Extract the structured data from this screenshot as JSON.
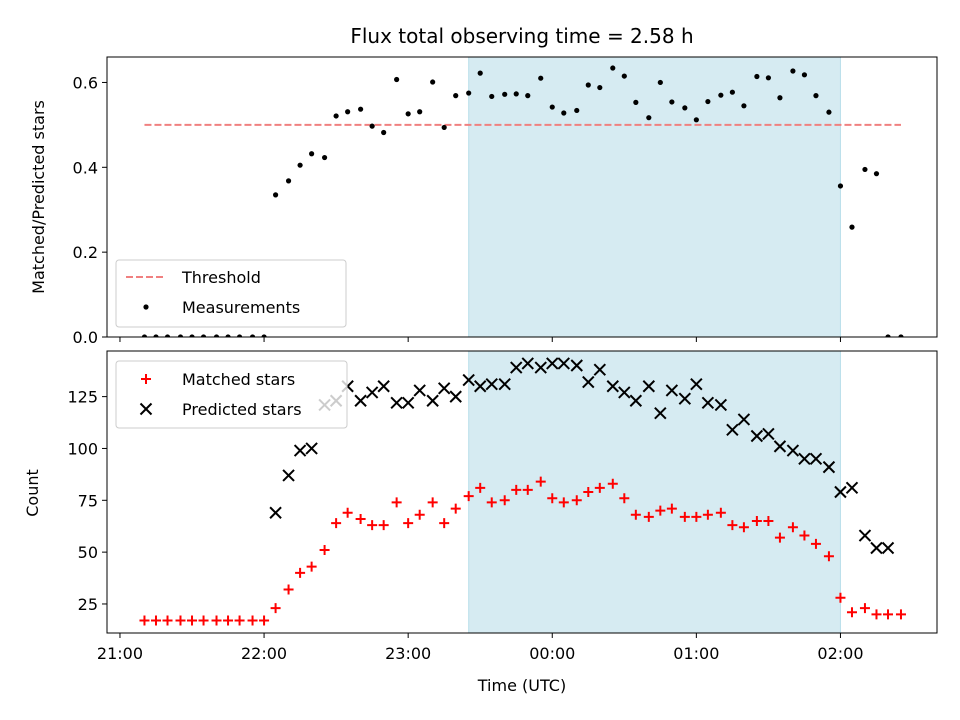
{
  "chart_data": [
    {
      "type": "scatter",
      "title": "Flux total observing time = 2.58 h",
      "xlabel": "",
      "ylabel": "Matched/Predicted stars",
      "ylim": [
        0,
        0.66
      ],
      "yticks": [
        0.0,
        0.2,
        0.4,
        0.6
      ],
      "ytick_labels": [
        "0.0",
        "0.2",
        "0.4",
        "0.6"
      ],
      "xlim_hours": [
        20.91,
        26.67
      ],
      "xticks_hours": [
        21,
        22,
        23,
        24,
        25,
        26
      ],
      "observing_window_hours": [
        23.42,
        26.0
      ],
      "observing_window_color": "#add8e6",
      "threshold": {
        "name": "Threshold",
        "value": 0.5,
        "x_range_hours": [
          21.17,
          26.42
        ],
        "color": "#f08080"
      },
      "legend_position": "lower left",
      "series": [
        {
          "name": "Measurements",
          "color": "#000000",
          "marker": "dot",
          "x_hours": [
            21.17,
            21.25,
            21.33,
            21.42,
            21.5,
            21.58,
            21.67,
            21.75,
            21.83,
            21.92,
            22.0,
            22.08,
            22.17,
            22.25,
            22.33,
            22.42,
            22.5,
            22.58,
            22.67,
            22.75,
            22.83,
            22.92,
            23.0,
            23.08,
            23.17,
            23.25,
            23.33,
            23.42,
            23.5,
            23.58,
            23.67,
            23.75,
            23.83,
            23.92,
            24.0,
            24.08,
            24.17,
            24.25,
            24.33,
            24.42,
            24.5,
            24.58,
            24.67,
            24.75,
            24.83,
            24.92,
            25.0,
            25.08,
            25.17,
            25.25,
            25.33,
            25.42,
            25.5,
            25.58,
            25.67,
            25.75,
            25.83,
            25.92,
            26.0,
            26.08,
            26.17,
            26.25,
            26.33,
            26.42
          ],
          "values": [
            0,
            0,
            0,
            0,
            0,
            0,
            0,
            0,
            0,
            0,
            0,
            0.335,
            0.368,
            0.405,
            0.432,
            0.423,
            0.521,
            0.531,
            0.537,
            0.497,
            0.482,
            0.607,
            0.526,
            0.531,
            0.601,
            0.494,
            0.569,
            0.575,
            0.622,
            0.567,
            0.572,
            0.573,
            0.569,
            0.61,
            0.542,
            0.528,
            0.534,
            0.594,
            0.588,
            0.634,
            0.615,
            0.553,
            0.517,
            0.6,
            0.554,
            0.54,
            0.512,
            0.555,
            0.57,
            0.577,
            0.545,
            0.614,
            0.611,
            0.564,
            0.627,
            0.618,
            0.569,
            0.53,
            0.356,
            0.259,
            0.395,
            0.385,
            0.0,
            0.0
          ]
        }
      ]
    },
    {
      "type": "scatter",
      "title": "",
      "xlabel": "Time (UTC)",
      "ylabel": "Count",
      "ylim": [
        11,
        147
      ],
      "yticks": [
        25,
        50,
        75,
        100,
        125
      ],
      "ytick_labels": [
        "25",
        "50",
        "75",
        "100",
        "125"
      ],
      "xlim_hours": [
        20.91,
        26.67
      ],
      "xticks_hours": [
        21,
        22,
        23,
        24,
        25,
        26
      ],
      "xtick_labels": [
        "21:00",
        "22:00",
        "23:00",
        "00:00",
        "01:00",
        "02:00"
      ],
      "observing_window_hours": [
        23.42,
        26.0
      ],
      "observing_window_color": "#add8e6",
      "legend_position": "upper left",
      "series": [
        {
          "name": "Matched stars",
          "color": "#ff0000",
          "marker": "plus",
          "x_hours": [
            21.17,
            21.25,
            21.33,
            21.42,
            21.5,
            21.58,
            21.67,
            21.75,
            21.83,
            21.92,
            22.0,
            22.08,
            22.17,
            22.25,
            22.33,
            22.42,
            22.5,
            22.58,
            22.67,
            22.75,
            22.83,
            22.92,
            23.0,
            23.08,
            23.17,
            23.25,
            23.33,
            23.42,
            23.5,
            23.58,
            23.67,
            23.75,
            23.83,
            23.92,
            24.0,
            24.08,
            24.17,
            24.25,
            24.33,
            24.42,
            24.5,
            24.58,
            24.67,
            24.75,
            24.83,
            24.92,
            25.0,
            25.08,
            25.17,
            25.25,
            25.33,
            25.42,
            25.5,
            25.58,
            25.67,
            25.75,
            25.83,
            25.92,
            26.0,
            26.08,
            26.17,
            26.25,
            26.33,
            26.42
          ],
          "values": [
            17,
            17,
            17,
            17,
            17,
            17,
            17,
            17,
            17,
            17,
            17,
            23,
            32,
            40,
            43,
            51,
            64,
            69,
            66,
            63,
            63,
            74,
            64,
            68,
            74,
            64,
            71,
            77,
            81,
            74,
            75,
            80,
            80,
            84,
            76,
            74,
            75,
            79,
            81,
            83,
            76,
            68,
            67,
            70,
            71,
            67,
            67,
            68,
            69,
            63,
            62,
            65,
            65,
            57,
            62,
            58,
            54,
            48,
            28,
            21,
            23,
            20,
            20,
            20
          ],
          "visible_from_index": 0
        },
        {
          "name": "Predicted stars",
          "color": "#000000",
          "marker": "x",
          "x_hours": [
            22.08,
            22.17,
            22.25,
            22.33,
            22.42,
            22.5,
            22.58,
            22.67,
            22.75,
            22.83,
            22.92,
            23.0,
            23.08,
            23.17,
            23.25,
            23.33,
            23.42,
            23.5,
            23.58,
            23.67,
            23.75,
            23.83,
            23.92,
            24.0,
            24.08,
            24.17,
            24.25,
            24.33,
            24.42,
            24.5,
            24.58,
            24.67,
            24.75,
            24.83,
            24.92,
            25.0,
            25.08,
            25.17,
            25.25,
            25.33,
            25.42,
            25.5,
            25.58,
            25.67,
            25.75,
            25.83,
            25.92,
            26.0,
            26.08,
            26.17,
            26.25,
            26.33
          ],
          "values": [
            69,
            87,
            99,
            100,
            121,
            123,
            130,
            123,
            127,
            130,
            122,
            122,
            128,
            123,
            129,
            125,
            133,
            130,
            131,
            131,
            139,
            141,
            139,
            141,
            141,
            140,
            132,
            138,
            130,
            127,
            123,
            130,
            117,
            128,
            124,
            131,
            122,
            121,
            109,
            114,
            106,
            107,
            101,
            99,
            95,
            95,
            91,
            79,
            81,
            58,
            52,
            52
          ]
        }
      ]
    }
  ]
}
